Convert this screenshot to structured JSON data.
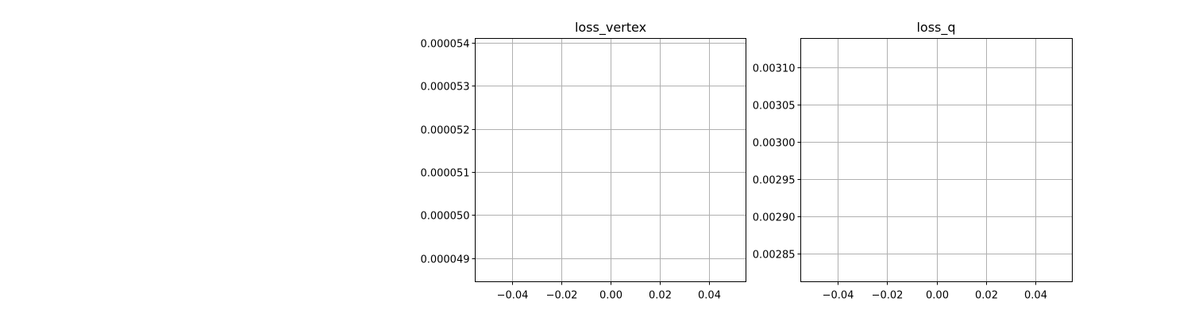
{
  "chart_data": [
    {
      "type": "line",
      "title": "loss_vertex",
      "xlabel": "",
      "ylabel": "",
      "xlim": [
        -0.055,
        0.055
      ],
      "ylim": [
        4.845e-05,
        5.41e-05
      ],
      "x_ticks": [
        -0.04,
        -0.02,
        0.0,
        0.02,
        0.04
      ],
      "x_tick_labels": [
        "−0.04",
        "−0.02",
        "0.00",
        "0.02",
        "0.04"
      ],
      "y_ticks": [
        4.9e-05,
        5e-05,
        5.1e-05,
        5.2e-05,
        5.3e-05,
        5.4e-05
      ],
      "y_tick_labels": [
        "0.000049",
        "0.000050",
        "0.000051",
        "0.000052",
        "0.000053",
        "0.000054"
      ],
      "grid": true,
      "series": [
        {
          "x": [],
          "y": []
        }
      ]
    },
    {
      "type": "line",
      "title": "loss_q",
      "xlabel": "",
      "ylabel": "",
      "xlim": [
        -0.055,
        0.055
      ],
      "ylim": [
        0.002812,
        0.003139
      ],
      "x_ticks": [
        -0.04,
        -0.02,
        0.0,
        0.02,
        0.04
      ],
      "x_tick_labels": [
        "−0.04",
        "−0.02",
        "0.00",
        "0.02",
        "0.04"
      ],
      "y_ticks": [
        0.00285,
        0.0029,
        0.00295,
        0.003,
        0.00305,
        0.0031
      ],
      "y_tick_labels": [
        "0.00285",
        "0.00290",
        "0.00295",
        "0.00300",
        "0.00305",
        "0.00310"
      ],
      "grid": true,
      "series": [
        {
          "x": [],
          "y": []
        }
      ]
    }
  ]
}
